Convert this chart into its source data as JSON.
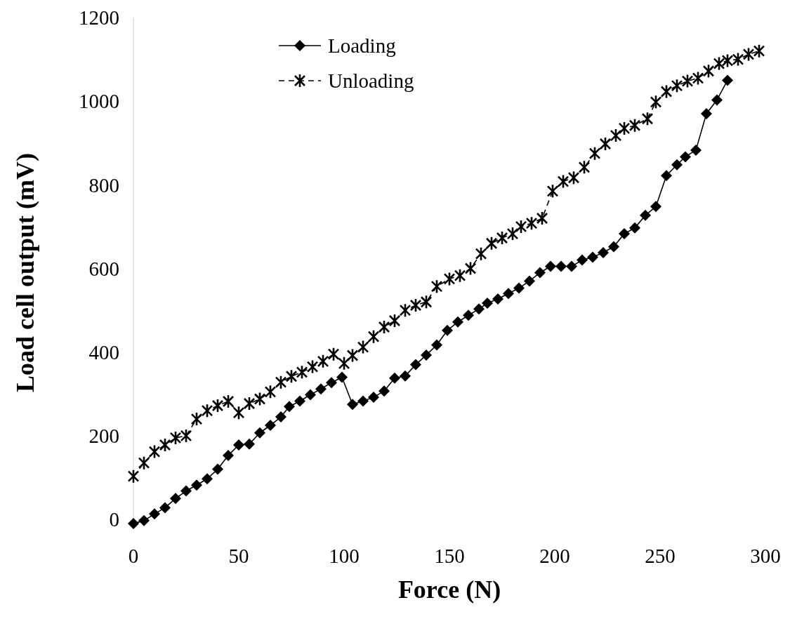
{
  "chart_data": {
    "type": "line",
    "xlabel": "Force (N)",
    "ylabel": "Load cell output (mV)",
    "xlim": [
      0,
      300
    ],
    "xticks": [
      0,
      50,
      100,
      150,
      200,
      250,
      300
    ],
    "ylim": [
      -20,
      1200
    ],
    "yticks": [
      0,
      200,
      400,
      600,
      800,
      1000,
      1200
    ],
    "grid": false,
    "legend": "top",
    "series": [
      {
        "name": "Loading",
        "color": "#000000",
        "marker": "diamond",
        "line_style": "solid",
        "x": [
          0,
          5,
          10,
          15,
          20,
          25,
          30,
          35,
          40,
          45,
          50,
          55,
          60,
          65,
          70,
          74,
          79,
          84,
          89,
          94,
          99,
          104,
          109,
          114,
          119,
          124,
          129,
          134,
          139,
          144,
          149,
          154,
          159,
          164,
          168,
          173,
          178,
          183,
          188,
          193,
          198,
          203,
          208,
          213,
          218,
          223,
          228,
          233,
          238,
          243,
          248,
          253,
          258,
          262,
          267,
          272,
          277,
          282
        ],
        "values": [
          -10,
          -3,
          13,
          28,
          50,
          68,
          82,
          97,
          120,
          153,
          178,
          180,
          207,
          225,
          245,
          270,
          283,
          298,
          312,
          327,
          340,
          275,
          283,
          292,
          307,
          338,
          343,
          370,
          393,
          417,
          452,
          472,
          488,
          503,
          517,
          527,
          540,
          553,
          570,
          590,
          605,
          605,
          605,
          620,
          627,
          638,
          652,
          683,
          697,
          727,
          748,
          822,
          848,
          867,
          883,
          970,
          1003,
          1050
        ]
      },
      {
        "name": "Unloading",
        "color": "#000000",
        "marker": "cross",
        "line_style": "dashed",
        "x": [
          0,
          5,
          10,
          15,
          20,
          25,
          30,
          35,
          40,
          45,
          50,
          55,
          60,
          65,
          70,
          75,
          80,
          85,
          90,
          95,
          100,
          104,
          109,
          114,
          119,
          124,
          129,
          134,
          139,
          144,
          150,
          155,
          160,
          165,
          170,
          175,
          180,
          184,
          189,
          194,
          199,
          204,
          209,
          214,
          219,
          224,
          229,
          233,
          238,
          244,
          248,
          253,
          258,
          263,
          268,
          273,
          278,
          282,
          287,
          292,
          297
        ],
        "values": [
          103,
          135,
          162,
          178,
          195,
          200,
          240,
          260,
          272,
          282,
          255,
          277,
          288,
          305,
          328,
          342,
          352,
          365,
          378,
          395,
          373,
          392,
          412,
          437,
          460,
          475,
          500,
          512,
          520,
          557,
          575,
          583,
          600,
          635,
          660,
          673,
          683,
          700,
          708,
          720,
          785,
          808,
          817,
          842,
          875,
          898,
          918,
          935,
          942,
          958,
          998,
          1023,
          1037,
          1048,
          1055,
          1072,
          1090,
          1097,
          1100,
          1112,
          1120
        ]
      }
    ]
  }
}
